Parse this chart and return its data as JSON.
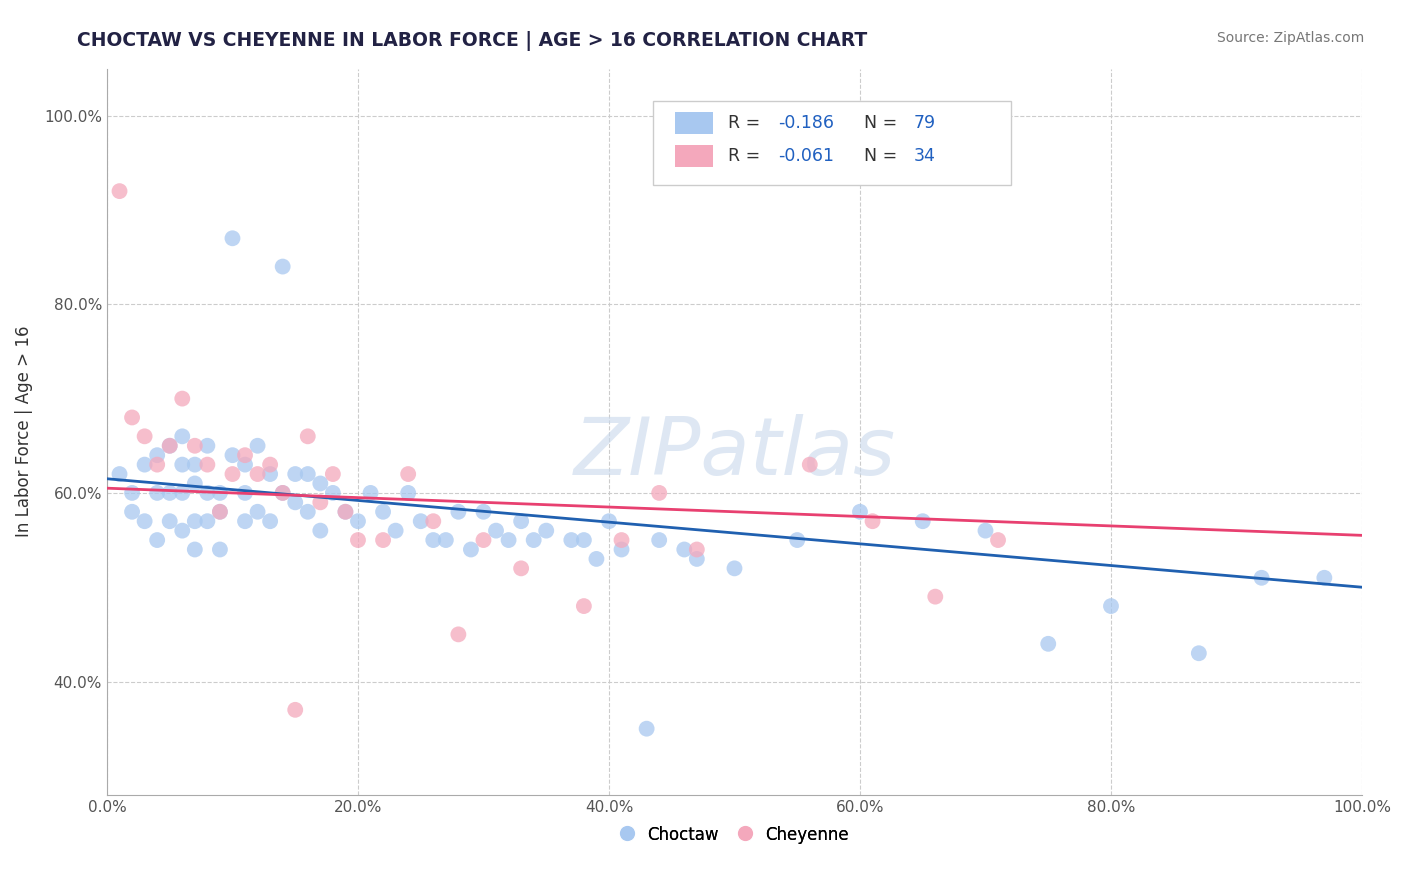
{
  "title": "CHOCTAW VS CHEYENNE IN LABOR FORCE | AGE > 16 CORRELATION CHART",
  "source_text": "Source: ZipAtlas.com",
  "ylabel": "In Labor Force | Age > 16",
  "xlabel": "",
  "xlim": [
    0.0,
    1.0
  ],
  "ylim": [
    0.28,
    1.05
  ],
  "xticks": [
    0.0,
    0.2,
    0.4,
    0.6,
    0.8,
    1.0
  ],
  "yticks": [
    0.4,
    0.6,
    0.8,
    1.0
  ],
  "xtick_labels": [
    "0.0%",
    "20.0%",
    "40.0%",
    "60.0%",
    "80.0%",
    "100.0%"
  ],
  "ytick_labels": [
    "40.0%",
    "60.0%",
    "80.0%",
    "100.0%"
  ],
  "choctaw_color": "#A8C8F0",
  "cheyenne_color": "#F4A8BC",
  "choctaw_line_color": "#2060B0",
  "cheyenne_line_color": "#E84070",
  "choctaw_R": -0.186,
  "choctaw_N": 79,
  "cheyenne_R": -0.061,
  "cheyenne_N": 34,
  "watermark_text": "ZIPatlas",
  "legend_value_color": "#2060C0",
  "choctaw_label": "Choctaw",
  "cheyenne_label": "Cheyenne",
  "choctaw_x": [
    0.01,
    0.02,
    0.02,
    0.03,
    0.03,
    0.04,
    0.04,
    0.04,
    0.05,
    0.05,
    0.05,
    0.06,
    0.06,
    0.06,
    0.06,
    0.07,
    0.07,
    0.07,
    0.07,
    0.08,
    0.08,
    0.08,
    0.09,
    0.09,
    0.09,
    0.1,
    0.1,
    0.11,
    0.11,
    0.11,
    0.12,
    0.12,
    0.13,
    0.13,
    0.14,
    0.14,
    0.15,
    0.15,
    0.16,
    0.16,
    0.17,
    0.17,
    0.18,
    0.19,
    0.2,
    0.21,
    0.22,
    0.23,
    0.24,
    0.25,
    0.26,
    0.27,
    0.28,
    0.29,
    0.3,
    0.31,
    0.32,
    0.33,
    0.34,
    0.35,
    0.37,
    0.38,
    0.39,
    0.4,
    0.41,
    0.43,
    0.44,
    0.46,
    0.47,
    0.5,
    0.55,
    0.6,
    0.65,
    0.7,
    0.75,
    0.8,
    0.87,
    0.92,
    0.97
  ],
  "choctaw_y": [
    0.62,
    0.6,
    0.58,
    0.63,
    0.57,
    0.64,
    0.6,
    0.55,
    0.65,
    0.6,
    0.57,
    0.66,
    0.63,
    0.6,
    0.56,
    0.63,
    0.61,
    0.57,
    0.54,
    0.65,
    0.6,
    0.57,
    0.6,
    0.58,
    0.54,
    0.87,
    0.64,
    0.63,
    0.6,
    0.57,
    0.65,
    0.58,
    0.62,
    0.57,
    0.84,
    0.6,
    0.62,
    0.59,
    0.62,
    0.58,
    0.61,
    0.56,
    0.6,
    0.58,
    0.57,
    0.6,
    0.58,
    0.56,
    0.6,
    0.57,
    0.55,
    0.55,
    0.58,
    0.54,
    0.58,
    0.56,
    0.55,
    0.57,
    0.55,
    0.56,
    0.55,
    0.55,
    0.53,
    0.57,
    0.54,
    0.35,
    0.55,
    0.54,
    0.53,
    0.52,
    0.55,
    0.58,
    0.57,
    0.56,
    0.44,
    0.48,
    0.43,
    0.51,
    0.51
  ],
  "cheyenne_x": [
    0.01,
    0.02,
    0.03,
    0.04,
    0.05,
    0.06,
    0.07,
    0.08,
    0.09,
    0.1,
    0.11,
    0.12,
    0.13,
    0.14,
    0.15,
    0.16,
    0.17,
    0.18,
    0.19,
    0.2,
    0.22,
    0.24,
    0.26,
    0.28,
    0.3,
    0.33,
    0.38,
    0.41,
    0.44,
    0.47,
    0.56,
    0.61,
    0.66,
    0.71
  ],
  "cheyenne_y": [
    0.92,
    0.68,
    0.66,
    0.63,
    0.65,
    0.7,
    0.65,
    0.63,
    0.58,
    0.62,
    0.64,
    0.62,
    0.63,
    0.6,
    0.37,
    0.66,
    0.59,
    0.62,
    0.58,
    0.55,
    0.55,
    0.62,
    0.57,
    0.45,
    0.55,
    0.52,
    0.48,
    0.55,
    0.6,
    0.54,
    0.63,
    0.57,
    0.49,
    0.55
  ]
}
